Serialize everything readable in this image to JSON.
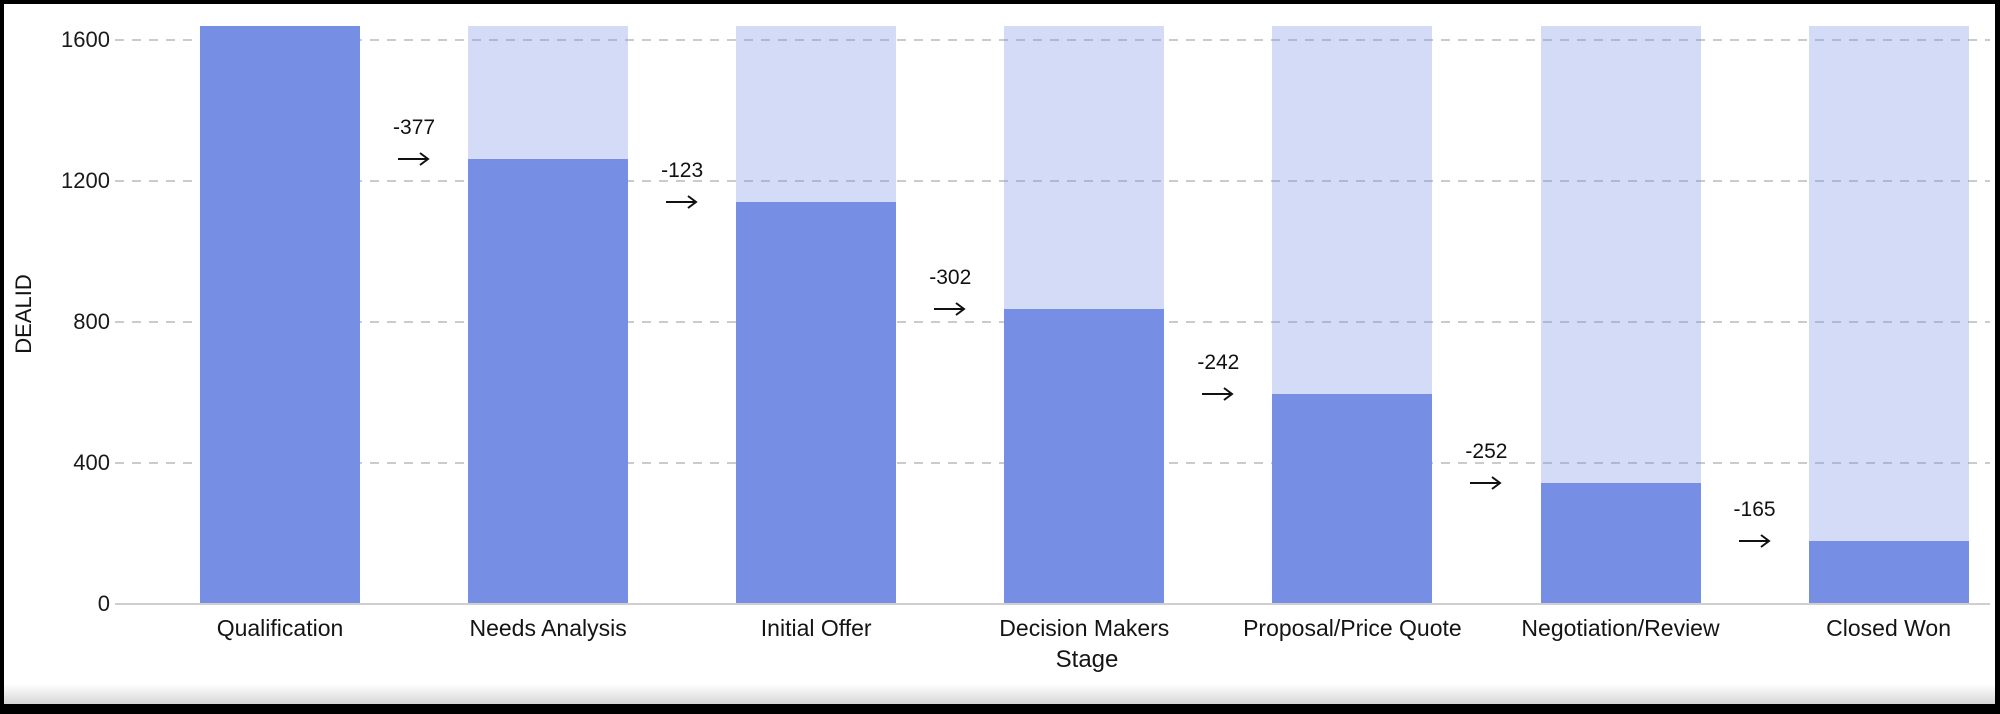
{
  "chart_data": {
    "type": "bar",
    "subtype": "funnel",
    "title": "",
    "xlabel": "Stage",
    "ylabel": "DEALID",
    "categories": [
      "Qualification",
      "Needs Analysis",
      "Initial Offer",
      "Decision Makers",
      "Proposal/Price Quote",
      "Negotiation/Review",
      "Closed Won"
    ],
    "values": [
      1640,
      1263,
      1140,
      838,
      596,
      344,
      179
    ],
    "background_bar_value": 1640,
    "drops": [
      -377,
      -123,
      -302,
      -242,
      -252,
      -165
    ],
    "drop_labels": [
      "-377",
      "-123",
      "-302",
      "-242",
      "-252",
      "-165"
    ],
    "y_ticks": [
      0,
      400,
      800,
      1200,
      1600
    ],
    "ylim": [
      0,
      1640
    ],
    "grid": "horizontal-dashed",
    "legend": "none",
    "colors": {
      "bar": "#768fe4",
      "bar_background": "rgba(118,143,228,0.32)",
      "gridline": "#cbcbcb",
      "axis_line": "#cfcfcf",
      "text": "#141414",
      "frame": "#000000",
      "plot_background": "#ffffff"
    }
  },
  "icons": {
    "drop_arrow": "right-arrow"
  }
}
